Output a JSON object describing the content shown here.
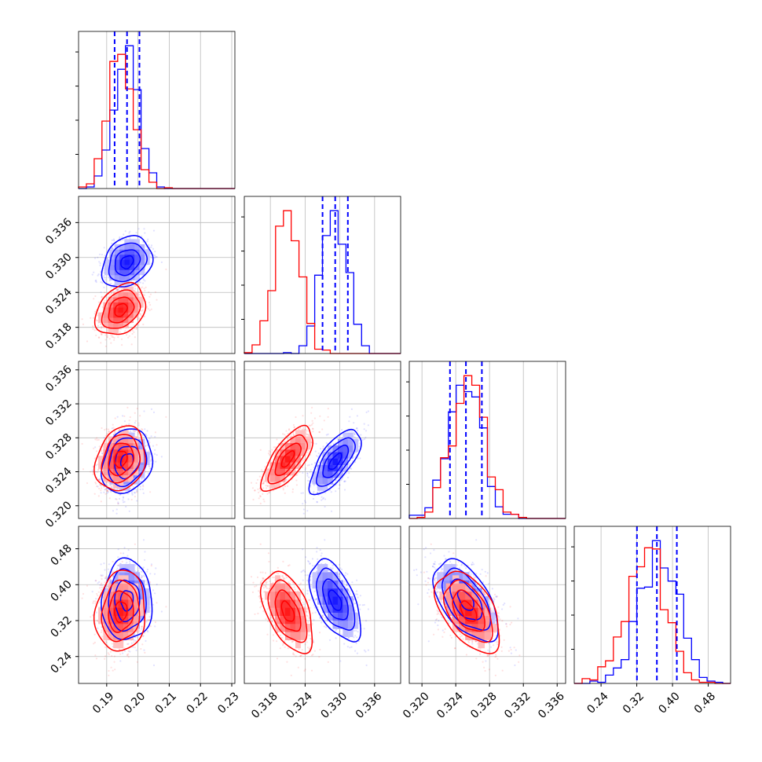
{
  "chart_data": {
    "type": "corner",
    "title": "",
    "grid": true,
    "colors": {
      "series_a": "#0000ff",
      "series_b": "#ff0000",
      "quantile": "#0000ff"
    },
    "series": [
      {
        "color": "#0000ff",
        "means": [
          0.1965,
          0.3292,
          0.3252,
          0.365
        ],
        "sds": [
          0.004,
          0.0022,
          0.0019,
          0.045
        ],
        "corr": [
          [
            1,
            0.25,
            0.2,
            0.0
          ],
          [
            0.25,
            1,
            0.7,
            -0.55
          ],
          [
            0.2,
            0.7,
            1,
            -0.55
          ],
          [
            0.0,
            -0.55,
            -0.55,
            1
          ]
        ]
      },
      {
        "color": "#ff0000",
        "means": [
          0.1945,
          0.321,
          0.3255,
          0.34
        ],
        "sds": [
          0.004,
          0.0022,
          0.0019,
          0.045
        ],
        "corr": [
          [
            1,
            0.3,
            0.2,
            0.1
          ],
          [
            0.3,
            1,
            0.7,
            -0.5
          ],
          [
            0.2,
            0.7,
            1,
            -0.5
          ],
          [
            0.1,
            -0.5,
            -0.5,
            1
          ]
        ]
      }
    ],
    "quantile_series": 0,
    "quantiles": [
      0.16,
      0.5,
      0.84
    ],
    "axes": [
      {
        "range": [
          0.181,
          0.231
        ],
        "ticks": [
          0.19,
          0.2,
          0.21,
          0.22,
          0.23
        ],
        "tick_labels": [
          "0.19",
          "0.20",
          "0.21",
          "0.22",
          "0.23"
        ]
      },
      {
        "range": [
          0.3135,
          0.3405
        ],
        "ticks": [
          0.318,
          0.324,
          0.33,
          0.336
        ],
        "tick_labels": [
          "0.318",
          "0.324",
          "0.330",
          "0.336"
        ]
      },
      {
        "range": [
          0.3185,
          0.337
        ],
        "ticks": [
          0.32,
          0.324,
          0.328,
          0.332,
          0.336
        ],
        "tick_labels": [
          "0.320",
          "0.324",
          "0.328",
          "0.332",
          "0.336"
        ]
      },
      {
        "range": [
          0.18,
          0.53
        ],
        "ticks": [
          0.24,
          0.32,
          0.4,
          0.48
        ],
        "tick_labels": [
          "0.24",
          "0.32",
          "0.40",
          "0.48"
        ]
      }
    ],
    "y_axes": [
      null,
      {
        "range": [
          0.3135,
          0.3405
        ],
        "ticks": [
          0.318,
          0.324,
          0.33,
          0.336
        ],
        "tick_labels": [
          "0.318",
          "0.324",
          "0.330",
          "0.336"
        ]
      },
      {
        "range": [
          0.3185,
          0.337
        ],
        "ticks": [
          0.32,
          0.324,
          0.328,
          0.332,
          0.336
        ],
        "tick_labels": [
          "0.320",
          "0.324",
          "0.328",
          "0.332",
          "0.336"
        ]
      },
      {
        "range": [
          0.18,
          0.53
        ],
        "ticks": [
          0.24,
          0.32,
          0.4,
          0.48
        ],
        "tick_labels": [
          "0.24",
          "0.32",
          "0.40",
          "0.48"
        ]
      }
    ],
    "contour_levels": [
      0.5,
      1.0,
      1.5,
      2.0
    ],
    "bins": 20,
    "scatter_points_per_series": 700
  }
}
